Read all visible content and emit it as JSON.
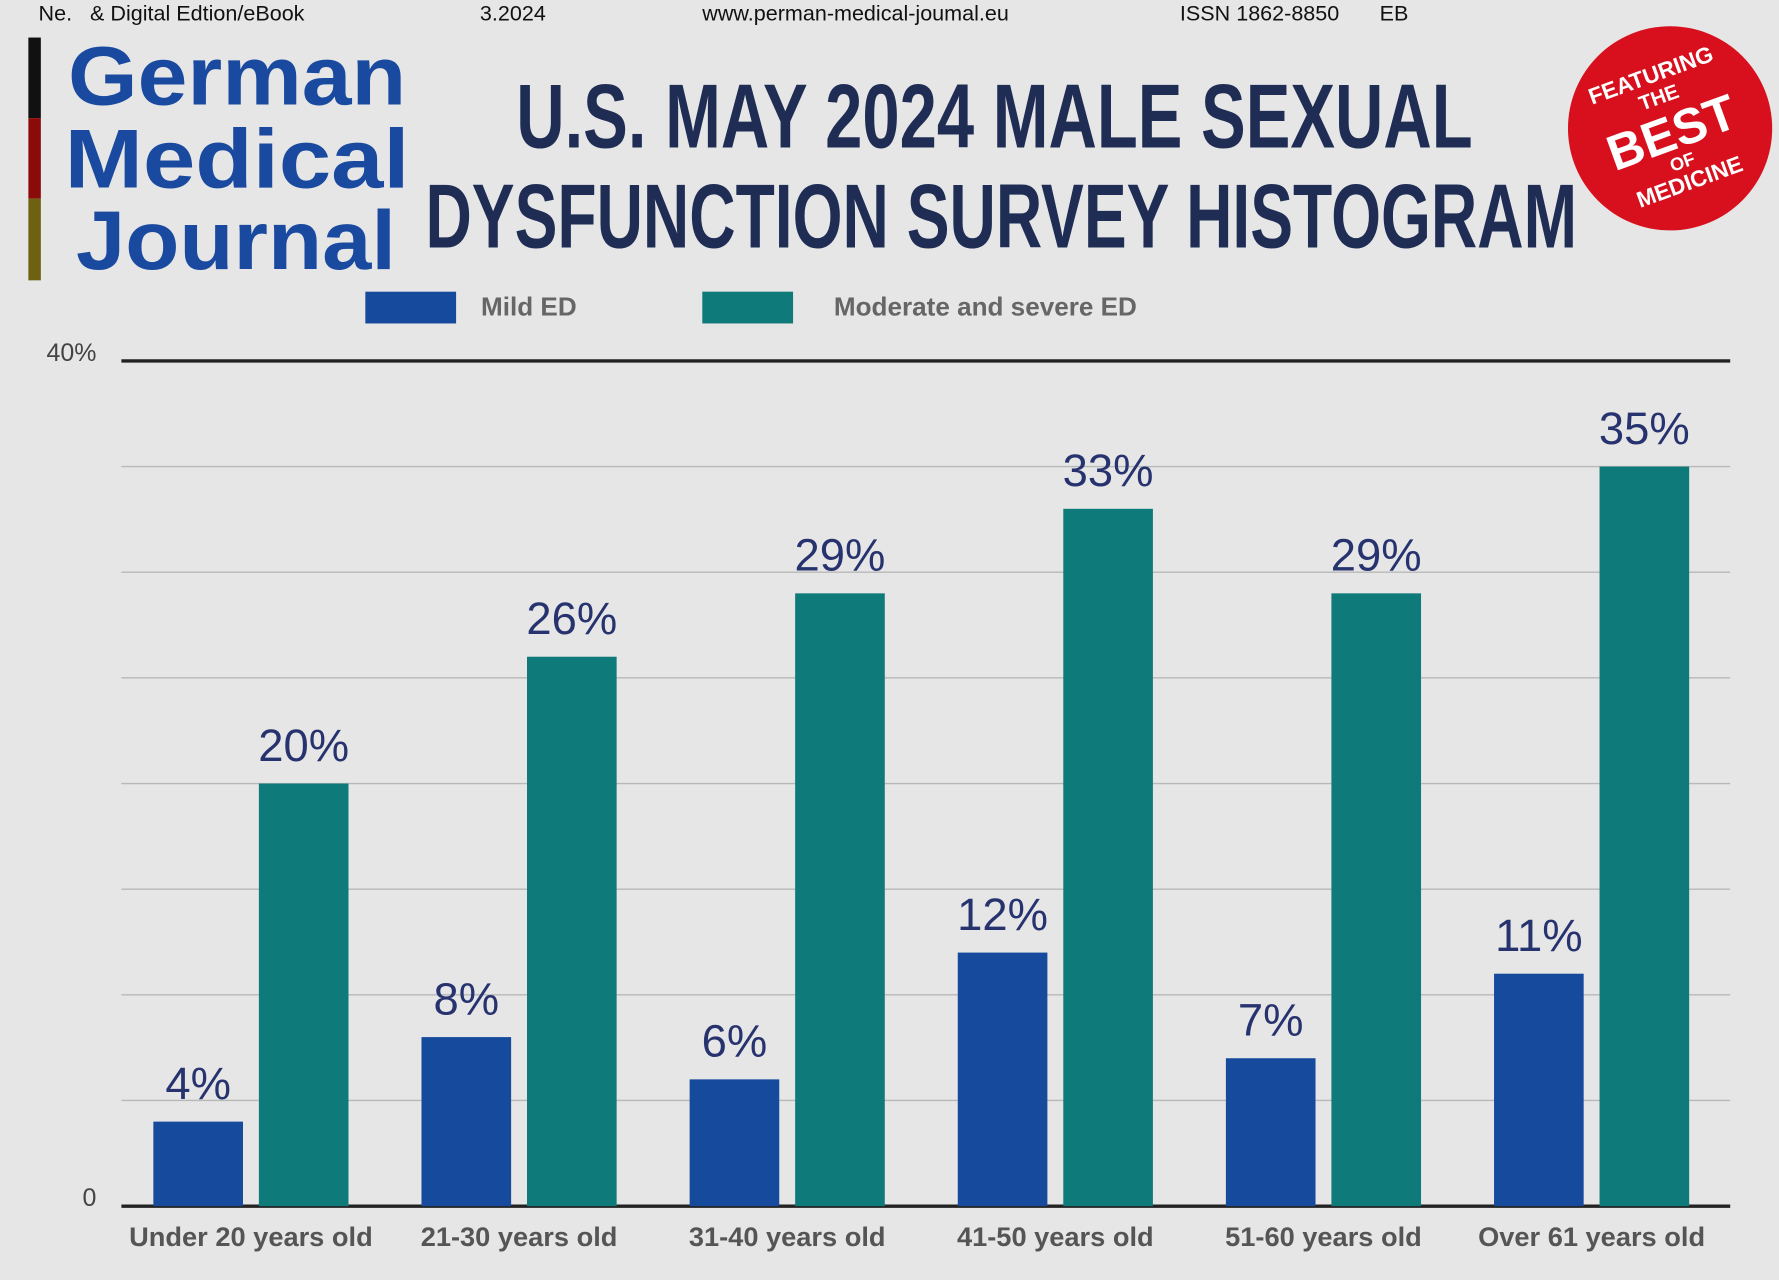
{
  "header": {
    "issue": "Ne.   & Digital Edtion/eBook",
    "date": "3.2024",
    "url": "www.perman-medical-joumal.eu",
    "issn": "ISSN 1862-8850",
    "edition": "EB",
    "logo": [
      "German",
      "Medical",
      "Journal"
    ],
    "badge": [
      "FEATURING",
      "THE",
      "BEST",
      "OF",
      "MEDICINE"
    ]
  },
  "chart_data": {
    "type": "bar",
    "title": [
      "U.S. MAY 2024 MALE SEXUAL",
      "DYSFUNCTION SURVEY HISTOGRAM"
    ],
    "categories": [
      "Under 20 years old",
      "21-30 years old",
      "31-40 years old",
      "41-50 years old",
      "51-60 years old",
      "Over 61 years old"
    ],
    "series": [
      {
        "name": "Mild ED",
        "color": "#164a9c",
        "values": [
          4,
          8,
          6,
          12,
          7,
          11
        ],
        "value_labels": [
          "4%",
          "8%",
          "6%",
          "12%",
          "7%",
          "11%"
        ]
      },
      {
        "name": "Moderate and severe ED",
        "color": "#0f7a7a",
        "values": [
          20,
          26,
          29,
          33,
          29,
          35
        ],
        "value_labels": [
          "20%",
          "26%",
          "29%",
          "33%",
          "29%",
          "35%"
        ]
      }
    ],
    "ylim": [
      0,
      40
    ],
    "yticks": [
      0,
      {
        "value": 5,
        "label": null
      },
      {
        "value": 10,
        "label": null
      },
      {
        "value": 15,
        "label": null
      },
      {
        "value": 20,
        "label": null
      },
      {
        "value": 25,
        "label": null
      },
      {
        "value": 30,
        "label": null
      },
      {
        "value": 35,
        "label": null
      },
      {
        "value": 40,
        "label": "40%"
      }
    ],
    "grid": true,
    "legend": "top"
  }
}
